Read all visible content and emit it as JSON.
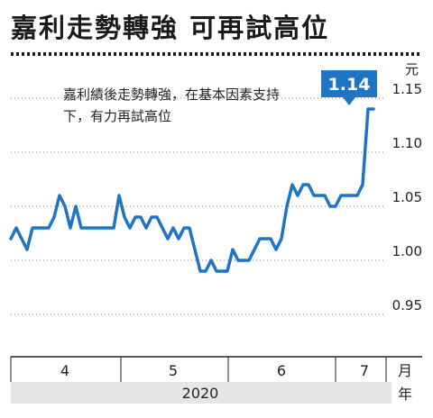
{
  "title": "嘉利走勢轉強 可再試高位",
  "annotation": "嘉利績後走勢轉強，在基本因素支持下，有力再試高位",
  "chart_data": {
    "type": "line",
    "title": "嘉利走勢轉強 可再試高位",
    "y_unit": "元",
    "x_unit": "月",
    "year_label": "2020",
    "yticks": [
      0.95,
      1.0,
      1.05,
      1.1,
      1.15
    ],
    "ytick_labels": [
      "0.95",
      "1.00",
      "1.05",
      "1.10",
      "1.15"
    ],
    "ylim": [
      0.93,
      1.17
    ],
    "month_labels": [
      "4",
      "5",
      "6",
      "7"
    ],
    "last_value_label": "1.14",
    "color": "#1f75c3",
    "values": [
      1.02,
      1.03,
      1.02,
      1.01,
      1.03,
      1.03,
      1.03,
      1.03,
      1.04,
      1.06,
      1.05,
      1.03,
      1.05,
      1.03,
      1.03,
      1.03,
      1.03,
      1.03,
      1.03,
      1.03,
      1.06,
      1.04,
      1.03,
      1.04,
      1.04,
      1.03,
      1.04,
      1.04,
      1.03,
      1.02,
      1.03,
      1.02,
      1.03,
      1.03,
      1.01,
      0.99,
      0.99,
      1.0,
      0.99,
      0.99,
      0.99,
      1.01,
      1.0,
      1.0,
      1.0,
      1.01,
      1.02,
      1.02,
      1.02,
      1.01,
      1.02,
      1.05,
      1.07,
      1.06,
      1.07,
      1.07,
      1.06,
      1.06,
      1.06,
      1.05,
      1.05,
      1.06,
      1.06,
      1.06,
      1.06,
      1.07,
      1.14,
      1.14
    ],
    "grid": true
  }
}
